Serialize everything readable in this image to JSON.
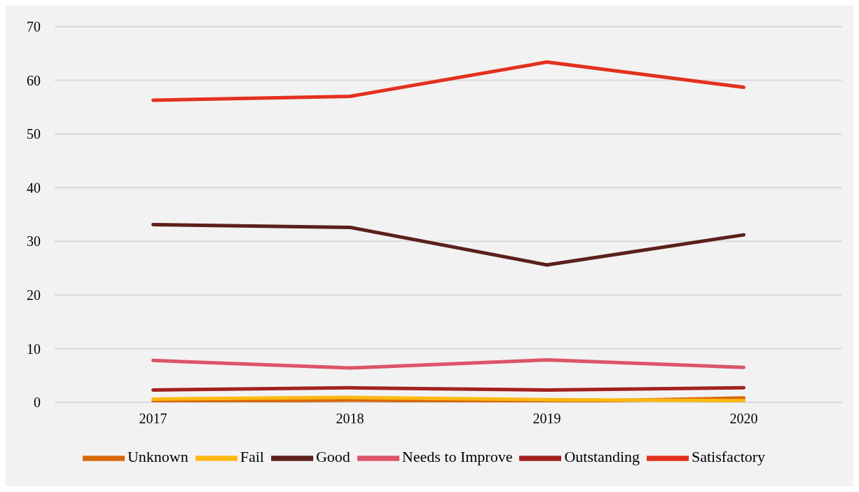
{
  "chart_data": {
    "type": "line",
    "categories": [
      "2017",
      "2018",
      "2019",
      "2020"
    ],
    "series": [
      {
        "name": "Unknown",
        "color": "#d9680a",
        "values": [
          0.1,
          0.4,
          0.1,
          0.8
        ]
      },
      {
        "name": "Fail",
        "color": "#fdb913",
        "values": [
          0.6,
          0.9,
          0.5,
          0.3
        ]
      },
      {
        "name": "Good",
        "color": "#5c201c",
        "values": [
          33.1,
          32.6,
          25.6,
          31.2
        ]
      },
      {
        "name": "Needs to Improve",
        "color": "#dc5468",
        "values": [
          7.8,
          6.4,
          7.9,
          6.5
        ]
      },
      {
        "name": "Outstanding",
        "color": "#a3211f",
        "values": [
          2.3,
          2.7,
          2.3,
          2.7
        ]
      },
      {
        "name": "Satisfactory",
        "color": "#e3301e",
        "values": [
          56.3,
          57.0,
          63.4,
          58.7
        ]
      }
    ],
    "ylim": [
      0,
      70
    ],
    "yticks": [
      0,
      10,
      20,
      30,
      40,
      50,
      60,
      70
    ],
    "grid": "y",
    "legend": "bottom",
    "marker": "none",
    "line_style": "solid"
  }
}
